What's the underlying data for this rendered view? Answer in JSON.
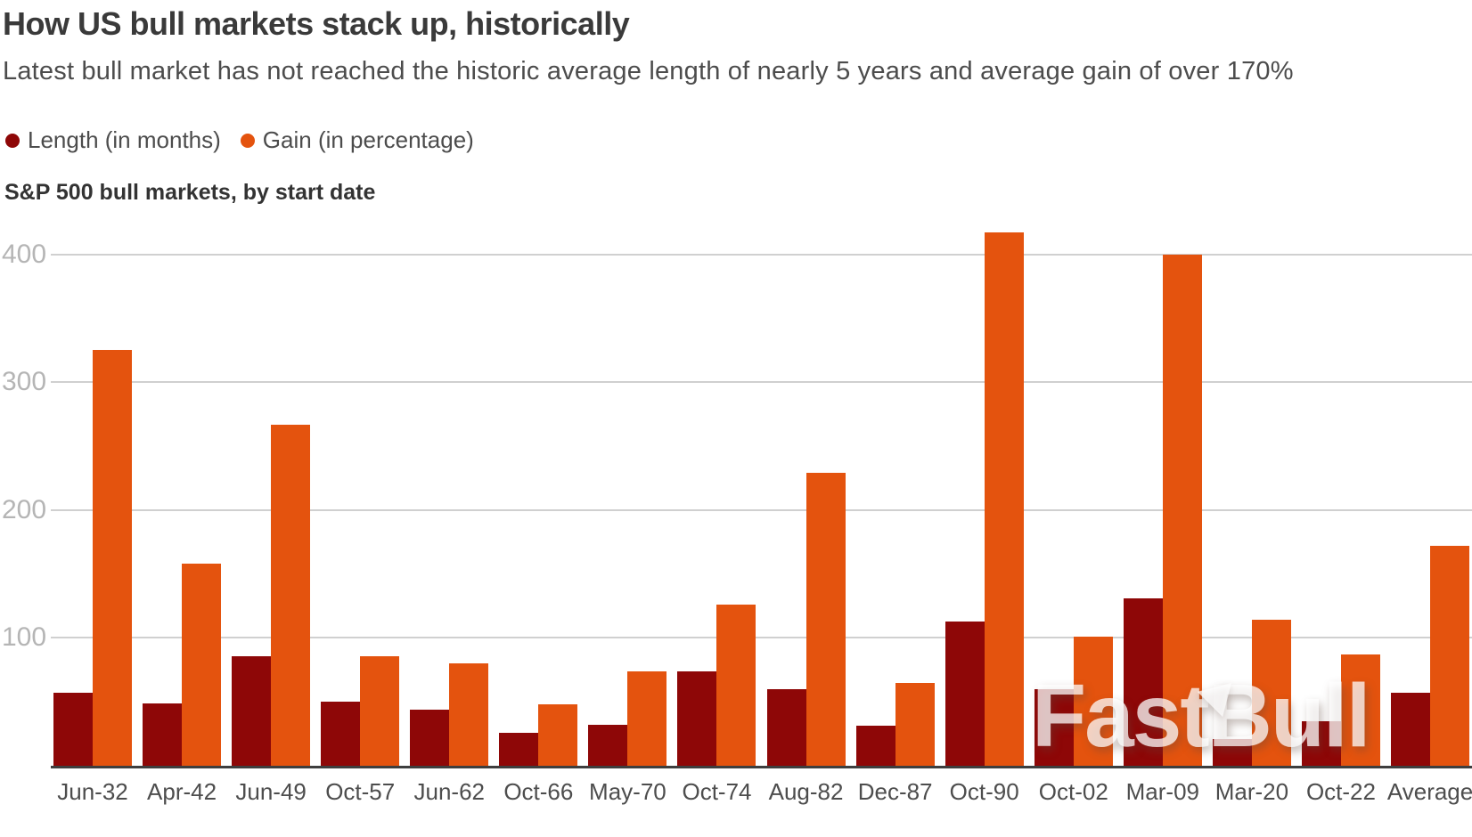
{
  "header": {
    "title": "How US bull markets stack up, historically",
    "subtitle": "Latest bull market has not reached the historic average length of nearly 5 years and average gain of over 170%"
  },
  "chart_data": {
    "type": "bar",
    "title": "S&P 500 bull markets, by start date",
    "categories": [
      "Jun-32",
      "Apr-42",
      "Jun-49",
      "Oct-57",
      "Jun-62",
      "Oct-66",
      "May-70",
      "Oct-74",
      "Aug-82",
      "Dec-87",
      "Oct-90",
      "Oct-02",
      "Mar-09",
      "Mar-20",
      "Oct-22",
      "Average"
    ],
    "series": [
      {
        "name": "Length (in months)",
        "color": "#8E0707",
        "values": [
          57,
          49,
          86,
          50,
          44,
          26,
          32,
          74,
          60,
          31,
          113,
          60,
          131,
          21,
          35,
          57
        ]
      },
      {
        "name": "Gain (in percentage)",
        "color": "#E4530E",
        "values": [
          325,
          158,
          267,
          86,
          80,
          48,
          74,
          126,
          229,
          65,
          417,
          101,
          400,
          114,
          87,
          172
        ]
      }
    ],
    "xlabel": "",
    "ylabel": "",
    "yticks": [
      100,
      200,
      300,
      400
    ],
    "ylim": [
      0,
      430
    ],
    "grid": "horizontal gridlines at yticks",
    "legend_position": "top-left above chart"
  },
  "watermark": {
    "text": "FastBull"
  }
}
